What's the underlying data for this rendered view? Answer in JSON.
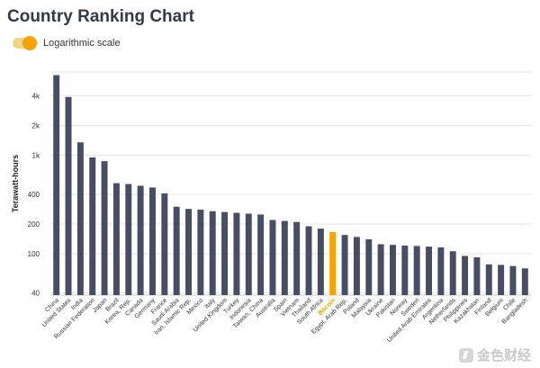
{
  "title": "Country Ranking Chart",
  "toggle": {
    "label": "Logarithmic scale",
    "on": true,
    "color": "#f5a300"
  },
  "watermark": "金色财经",
  "chart_data": {
    "type": "bar",
    "title": "Country Ranking Chart",
    "ylabel": "Terawatt-hours",
    "xlabel": "",
    "log_scale": true,
    "ylim": [
      38,
      7000
    ],
    "yticks": [
      40,
      100,
      200,
      400,
      "1k",
      "2k",
      "4k"
    ],
    "ytick_values": [
      40,
      100,
      200,
      400,
      1000,
      2000,
      4000
    ],
    "grid": true,
    "bar_color": "#474d63",
    "highlight_color": "#f5a300",
    "highlight": "Bitcoin",
    "categories": [
      "China",
      "United States",
      "India",
      "Russian Federation",
      "Japan",
      "Brazil",
      "Korea, Rep.",
      "Canada",
      "Germany",
      "France",
      "Saudi Arabia",
      "Iran, Islamic Rep.",
      "Mexico",
      "Italy",
      "United Kingdom",
      "Turkey",
      "Indonesia",
      "Taiwan, China",
      "Australia",
      "Spain",
      "Vietnam",
      "Thailand",
      "South Africa",
      "Bitcoin",
      "Egypt, Arab Rep.",
      "Poland",
      "Malaysia",
      "Ukraine",
      "Pakistan",
      "Norway",
      "Sweden",
      "United Arab Emirates",
      "Argentina",
      "Netherlands",
      "Philippines",
      "Kazakhstan",
      "Finland",
      "Belgium",
      "Chile",
      "Bangladesh"
    ],
    "values": [
      6500,
      3900,
      1350,
      950,
      870,
      520,
      510,
      490,
      470,
      410,
      300,
      285,
      280,
      270,
      265,
      260,
      255,
      250,
      220,
      215,
      210,
      190,
      180,
      166,
      155,
      148,
      140,
      125,
      123,
      121,
      120,
      118,
      116,
      106,
      95,
      92,
      78,
      77,
      75,
      71
    ]
  }
}
